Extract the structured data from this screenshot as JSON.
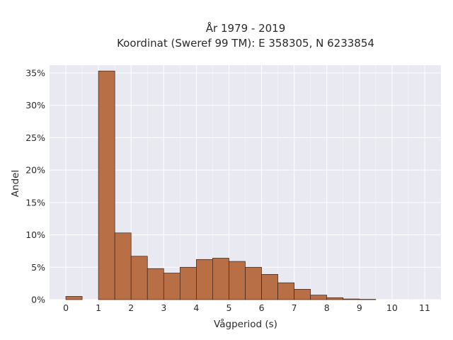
{
  "chart_data": {
    "type": "bar",
    "title_line1": "År 1979 - 2019",
    "title_line2": "Koordinat (Sweref 99 TM): E 358305, N 6233854",
    "xlabel": "Vågperiod (s)",
    "ylabel": "Andel",
    "xlim": [
      -0.5,
      11.5
    ],
    "ylim": [
      0,
      36.2
    ],
    "x_ticks": [
      0,
      1,
      2,
      3,
      4,
      5,
      6,
      7,
      8,
      9,
      10,
      11
    ],
    "x_tick_labels": [
      "0",
      "1",
      "2",
      "3",
      "4",
      "5",
      "6",
      "7",
      "8",
      "9",
      "10",
      "11"
    ],
    "y_ticks": [
      0,
      5,
      10,
      15,
      20,
      25,
      30,
      35
    ],
    "y_tick_labels": [
      "0%",
      "5%",
      "10%",
      "15%",
      "20%",
      "25%",
      "30%",
      "35%"
    ],
    "bin_width": 0.5,
    "bins": [
      {
        "start": 0.0,
        "value": 0.5
      },
      {
        "start": 0.5,
        "value": 0.0
      },
      {
        "start": 1.0,
        "value": 35.3
      },
      {
        "start": 1.5,
        "value": 10.3
      },
      {
        "start": 2.0,
        "value": 6.7
      },
      {
        "start": 2.5,
        "value": 4.8
      },
      {
        "start": 3.0,
        "value": 4.1
      },
      {
        "start": 3.5,
        "value": 5.0
      },
      {
        "start": 4.0,
        "value": 6.2
      },
      {
        "start": 4.5,
        "value": 6.4
      },
      {
        "start": 5.0,
        "value": 5.9
      },
      {
        "start": 5.5,
        "value": 5.0
      },
      {
        "start": 6.0,
        "value": 3.9
      },
      {
        "start": 6.5,
        "value": 2.6
      },
      {
        "start": 7.0,
        "value": 1.6
      },
      {
        "start": 7.5,
        "value": 0.7
      },
      {
        "start": 8.0,
        "value": 0.3
      },
      {
        "start": 8.5,
        "value": 0.1
      },
      {
        "start": 9.0,
        "value": 0.05
      }
    ],
    "grid": true,
    "colors": {
      "bar_fill": "#b86f45",
      "bar_edge": "#3a2418",
      "plot_bg": "#e9e9f1",
      "grid": "#ffffff"
    }
  }
}
